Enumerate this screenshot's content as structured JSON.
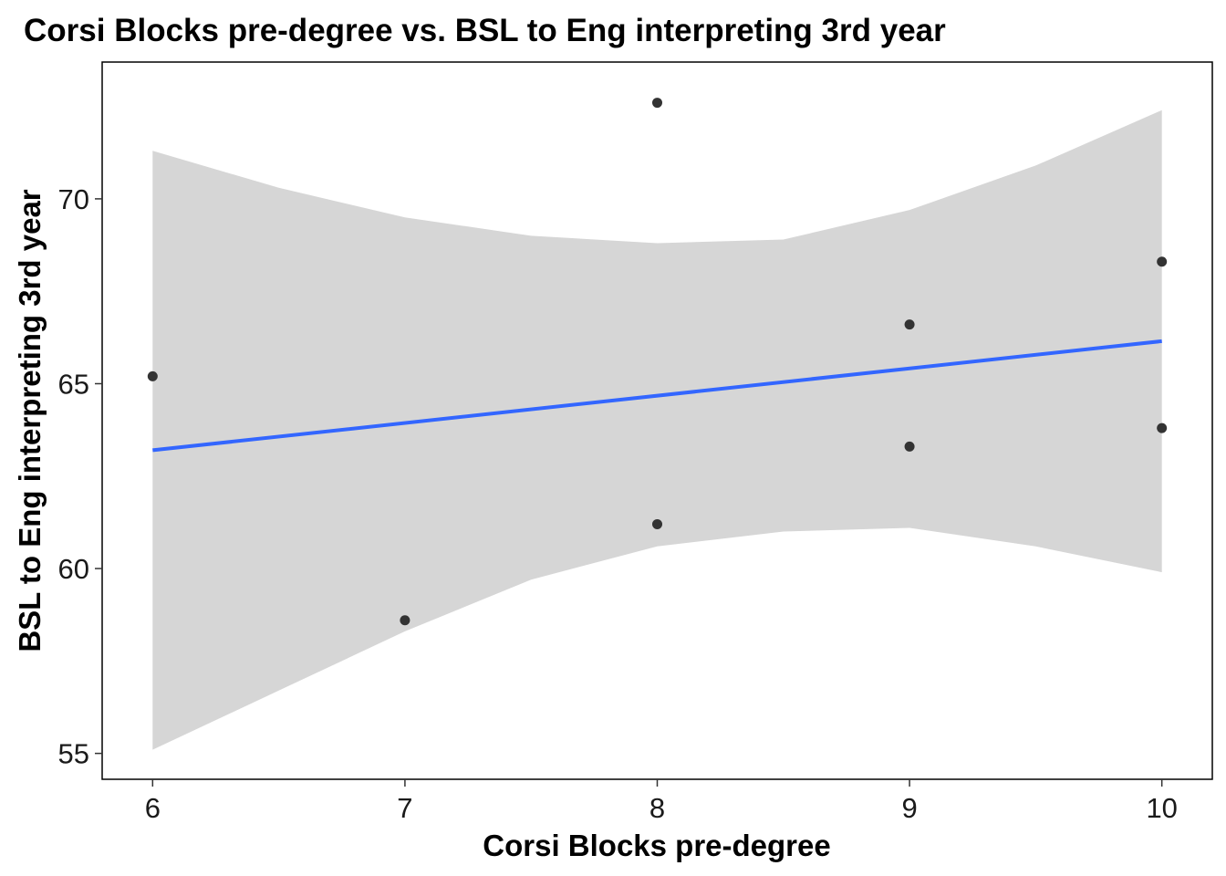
{
  "chart_data": {
    "type": "scatter",
    "title": "Corsi Blocks pre-degree vs. BSL to Eng interpreting 3rd year",
    "xlabel": "Corsi Blocks pre-degree",
    "ylabel": "BSL to Eng interpreting 3rd year",
    "xlim": [
      5.8,
      10.2
    ],
    "ylim": [
      54.3,
      73.7
    ],
    "x_ticks": [
      6,
      7,
      8,
      9,
      10
    ],
    "y_ticks": [
      55,
      60,
      65,
      70
    ],
    "grid": false,
    "points": [
      {
        "x": 6,
        "y": 65.2
      },
      {
        "x": 7,
        "y": 58.6
      },
      {
        "x": 8,
        "y": 72.6
      },
      {
        "x": 8,
        "y": 61.2
      },
      {
        "x": 9,
        "y": 66.6
      },
      {
        "x": 9,
        "y": 63.3
      },
      {
        "x": 10,
        "y": 68.3
      },
      {
        "x": 10,
        "y": 63.8
      }
    ],
    "regression": {
      "method": "linear",
      "x": [
        6,
        10
      ],
      "y": [
        63.2,
        66.15
      ],
      "confidence_band": {
        "x": [
          6.0,
          6.5,
          7.0,
          7.5,
          8.0,
          8.5,
          9.0,
          9.5,
          10.0
        ],
        "upper": [
          71.3,
          70.3,
          69.5,
          69.0,
          68.8,
          68.9,
          69.7,
          70.9,
          72.4
        ],
        "lower": [
          55.1,
          56.7,
          58.3,
          59.7,
          60.6,
          61.0,
          61.1,
          60.6,
          59.9
        ]
      }
    },
    "colors": {
      "points": "#333333",
      "line": "#3366FF",
      "band": "#D6D6D6",
      "panel_border": "#000000"
    }
  }
}
